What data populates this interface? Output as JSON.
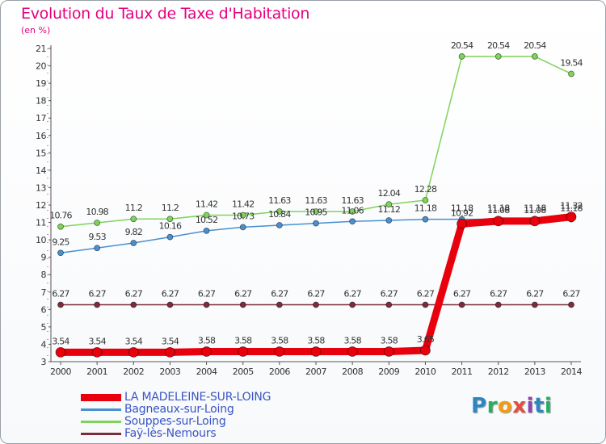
{
  "header": {
    "title": "Evolution du Taux de Taxe d'Habitation",
    "unit": "(en %)"
  },
  "brand": {
    "name": "Proxiti",
    "letters": [
      {
        "ch": "P",
        "color": "#2e86c1"
      },
      {
        "ch": "r",
        "color": "#27ae60"
      },
      {
        "ch": "o",
        "color": "#f39c12"
      },
      {
        "ch": "x",
        "color": "#e74c3c"
      },
      {
        "ch": "i",
        "color": "#8e44ad"
      },
      {
        "ch": "t",
        "color": "#2e86c1"
      },
      {
        "ch": "i",
        "color": "#27ae60"
      }
    ]
  },
  "chart_data": {
    "type": "line",
    "title": "Evolution du Taux de Taxe d'Habitation",
    "ylabel": "(en %)",
    "xlabel": "",
    "x": [
      "2000",
      "2001",
      "2002",
      "2003",
      "2004",
      "2005",
      "2006",
      "2007",
      "2008",
      "2009",
      "2010",
      "2011",
      "2012",
      "2013",
      "2014"
    ],
    "ylim": [
      3,
      21
    ],
    "yticks": [
      3,
      4,
      5,
      6,
      7,
      8,
      9,
      10,
      11,
      12,
      13,
      14,
      15,
      16,
      17,
      18,
      19,
      20,
      21
    ],
    "grid": false,
    "legend_position": "bottom-left",
    "series": [
      {
        "name": "Souppes-sur-Loing",
        "color": "#7fd35a",
        "emphasis": false,
        "values": [
          10.76,
          10.98,
          11.2,
          11.2,
          11.42,
          11.42,
          11.63,
          11.63,
          11.63,
          12.04,
          12.28,
          20.54,
          20.54,
          20.54,
          19.54
        ],
        "labels": [
          "10.76",
          "10.98",
          "11.2",
          "11.2",
          "11.42",
          "11.42",
          "11.63",
          "11.63",
          "11.63",
          "12.04",
          "12.28",
          "20.54",
          "20.54",
          "20.54",
          "19.54"
        ]
      },
      {
        "name": "Bagneaux-sur-Loing",
        "color": "#4a8fd0",
        "emphasis": false,
        "values": [
          9.25,
          9.53,
          9.82,
          10.16,
          10.52,
          10.73,
          10.84,
          10.95,
          11.06,
          11.12,
          11.18,
          11.18,
          11.18,
          11.18,
          11.18
        ],
        "labels": [
          "9.25",
          "9.53",
          "9.82",
          "10.16",
          "10.52",
          "10.73",
          "10.84",
          "10.95",
          "11.06",
          "11.12",
          "11.18",
          "11.18",
          "11.18",
          "11.18",
          "11.18"
        ]
      },
      {
        "name": "Faÿ-lès-Nemours",
        "color": "#7b2d3c",
        "emphasis": false,
        "values": [
          6.27,
          6.27,
          6.27,
          6.27,
          6.27,
          6.27,
          6.27,
          6.27,
          6.27,
          6.27,
          6.27,
          6.27,
          6.27,
          6.27,
          6.27
        ],
        "labels": [
          "6.27",
          "6.27",
          "6.27",
          "6.27",
          "6.27",
          "6.27",
          "6.27",
          "6.27",
          "6.27",
          "6.27",
          "6.27",
          "6.27",
          "6.27",
          "6.27",
          "6.27"
        ]
      },
      {
        "name": "LA MADELEINE-SUR-LOING",
        "color": "#e8000d",
        "emphasis": true,
        "values": [
          3.54,
          3.54,
          3.54,
          3.54,
          3.58,
          3.58,
          3.58,
          3.58,
          3.58,
          3.58,
          3.65,
          10.92,
          11.08,
          11.08,
          11.32
        ],
        "labels": [
          "3.54",
          "3.54",
          "3.54",
          "3.54",
          "3.58",
          "3.58",
          "3.58",
          "3.58",
          "3.58",
          "3.58",
          "3.65",
          "10.92",
          "11.08",
          "11.08",
          "11.32"
        ]
      }
    ],
    "legend_order": [
      "LA MADELEINE-SUR-LOING",
      "Bagneaux-sur-Loing",
      "Souppes-sur-Loing",
      "Faÿ-lès-Nemours"
    ]
  }
}
